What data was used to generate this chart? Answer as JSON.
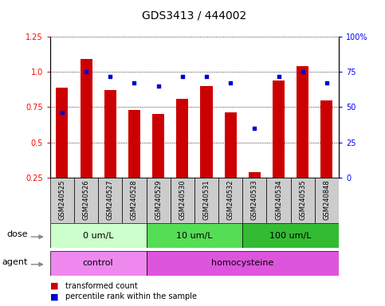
{
  "title": "GDS3413 / 444002",
  "samples": [
    "GSM240525",
    "GSM240526",
    "GSM240527",
    "GSM240528",
    "GSM240529",
    "GSM240530",
    "GSM240531",
    "GSM240532",
    "GSM240533",
    "GSM240534",
    "GSM240535",
    "GSM240848"
  ],
  "transformed_count": [
    0.89,
    1.09,
    0.87,
    0.73,
    0.7,
    0.81,
    0.9,
    0.71,
    0.29,
    0.94,
    1.04,
    0.8
  ],
  "percentile_rank_pct": [
    46,
    75,
    72,
    67,
    65,
    72,
    72,
    67,
    35,
    72,
    75,
    67
  ],
  "ylim": [
    0.25,
    1.25
  ],
  "yticks_left": [
    0.25,
    0.5,
    0.75,
    1.0,
    1.25
  ],
  "yticks_right": [
    0,
    25,
    50,
    75,
    100
  ],
  "bar_color": "#cc0000",
  "dot_color": "#0000cc",
  "sample_bg_color": "#cccccc",
  "dose_groups": [
    {
      "label": "0 um/L",
      "start": 0,
      "end": 4,
      "color": "#ccffcc"
    },
    {
      "label": "10 um/L",
      "start": 4,
      "end": 8,
      "color": "#55dd55"
    },
    {
      "label": "100 um/L",
      "start": 8,
      "end": 12,
      "color": "#33bb33"
    }
  ],
  "agent_groups": [
    {
      "label": "control",
      "start": 0,
      "end": 4,
      "color": "#ee88ee"
    },
    {
      "label": "homocysteine",
      "start": 4,
      "end": 12,
      "color": "#dd55dd"
    }
  ],
  "dose_label": "dose",
  "agent_label": "agent",
  "legend_items": [
    {
      "color": "#cc0000",
      "label": "transformed count"
    },
    {
      "color": "#0000cc",
      "label": "percentile rank within the sample"
    }
  ],
  "bar_width": 0.5,
  "title_fontsize": 10,
  "tick_fontsize": 7,
  "sample_fontsize": 6,
  "annot_fontsize": 8
}
